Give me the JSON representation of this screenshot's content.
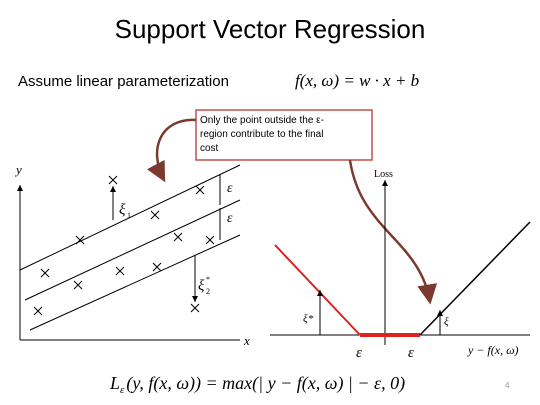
{
  "slide": {
    "title": "Support Vector Regression",
    "subtitle": "Assume linear parameterization",
    "model_formula": "f(x, ω) = w · x + b",
    "callout": [
      "Only the point outside the ε-",
      "region contribute to the final",
      "cost"
    ],
    "left_plot": {
      "y_label": "y",
      "x_label": "x",
      "xi_1": "ξ",
      "xi_1_sub": "1",
      "xi_2": "ξ",
      "xi_2_sub": "2",
      "xi_2_sup": "*",
      "eps_upper": "ε",
      "eps_lower": "ε"
    },
    "right_plot": {
      "y_label": "Loss",
      "x_label": "y − f(x, ω)",
      "xi_star": "ξ*",
      "xi": "ξ",
      "eps_left": "ε",
      "eps_right": "ε"
    },
    "loss_formula": {
      "lhs": "L",
      "sub": "ε",
      "rhs": "(y, f(x, ω)) = max(| y − f(x, ω) | − ε, 0)"
    },
    "page_number": "4"
  }
}
